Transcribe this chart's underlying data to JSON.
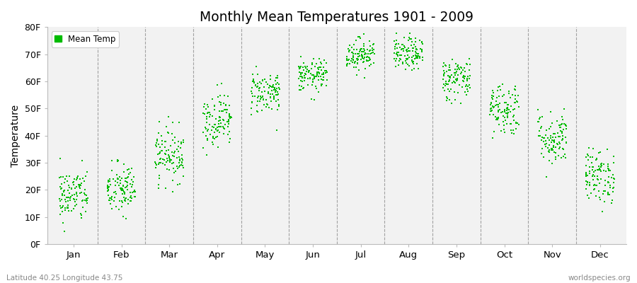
{
  "title": "Monthly Mean Temperatures 1901 - 2009",
  "ylabel": "Temperature",
  "xlabel_labels": [
    "Jan",
    "Feb",
    "Mar",
    "Apr",
    "May",
    "Jun",
    "Jul",
    "Aug",
    "Sep",
    "Oct",
    "Nov",
    "Dec"
  ],
  "ytick_labels": [
    "0F",
    "10F",
    "20F",
    "30F",
    "40F",
    "50F",
    "60F",
    "70F",
    "80F"
  ],
  "ytick_values": [
    0,
    10,
    20,
    30,
    40,
    50,
    60,
    70,
    80
  ],
  "ylim": [
    0,
    80
  ],
  "legend_label": "Mean Temp",
  "dot_color": "#00bb00",
  "background_color": "#ffffff",
  "plot_bg_color": "#f2f2f2",
  "bottom_left_text": "Latitude 40.25 Longitude 43.75",
  "bottom_right_text": "worldspecies.org",
  "monthly_means": [
    18,
    20,
    33,
    46,
    56,
    62,
    70,
    70,
    61,
    50,
    39,
    25
  ],
  "monthly_stds": [
    5,
    5,
    5,
    5,
    4,
    3,
    3,
    3,
    4,
    5,
    5,
    5
  ],
  "n_years": 109,
  "seed": 42
}
